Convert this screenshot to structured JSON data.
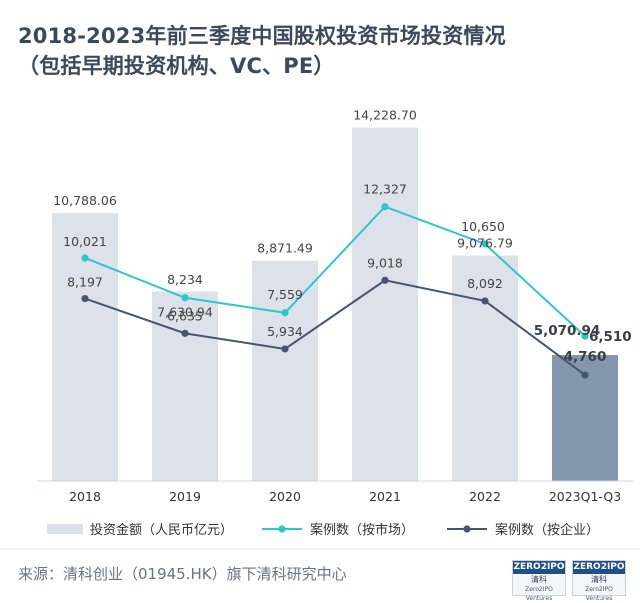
{
  "title_line1": "2018-2023年前三季度中国股权投资市场投资情况",
  "title_line2": "（包括早期投资机构、VC、PE）",
  "source": "来源：清科创业（01945.HK）旗下清科研究中心",
  "logo": {
    "brand": "ZERO2IPO",
    "cn": "清科",
    "en": "Zero2IPO Ventures"
  },
  "colors": {
    "bar": "#dde1ea",
    "bar_highlight": "#8496ad",
    "market_line": "#2ec7c9",
    "enterprise_line": "#46566e",
    "text": "#444444"
  },
  "chart_data": {
    "type": "bar+line",
    "categories": [
      "2018",
      "2019",
      "2020",
      "2021",
      "2022",
      "2023Q1-Q3"
    ],
    "series": [
      {
        "name": "投资金额（人民币亿元）",
        "type": "bar",
        "values": [
          10788.06,
          7630.94,
          8871.49,
          14228.7,
          9076.79,
          5070.94
        ],
        "labels": [
          "10,788.06",
          "7,630.94",
          "8,871.49",
          "14,228.70",
          "9,076.79",
          "5,070.94"
        ]
      },
      {
        "name": "案例数（按市场）",
        "type": "line",
        "color": "#2ec7c9",
        "values": [
          10021,
          8234,
          7559,
          12327,
          10650,
          6510
        ],
        "labels": [
          "10,021",
          "8,234",
          "7,559",
          "12,327",
          "10,650",
          "6,510"
        ]
      },
      {
        "name": "案例数（按企业）",
        "type": "line",
        "color": "#46566e",
        "values": [
          8197,
          6635,
          5934,
          9018,
          8092,
          4760
        ],
        "labels": [
          "8,197",
          "6,635",
          "5,934",
          "9,018",
          "8,092",
          "4,760"
        ]
      }
    ],
    "highlight_index": 5,
    "bar_ylim": [
      0,
      15500
    ],
    "line_ylim": [
      0,
      17300
    ],
    "legend_position": "bottom"
  }
}
